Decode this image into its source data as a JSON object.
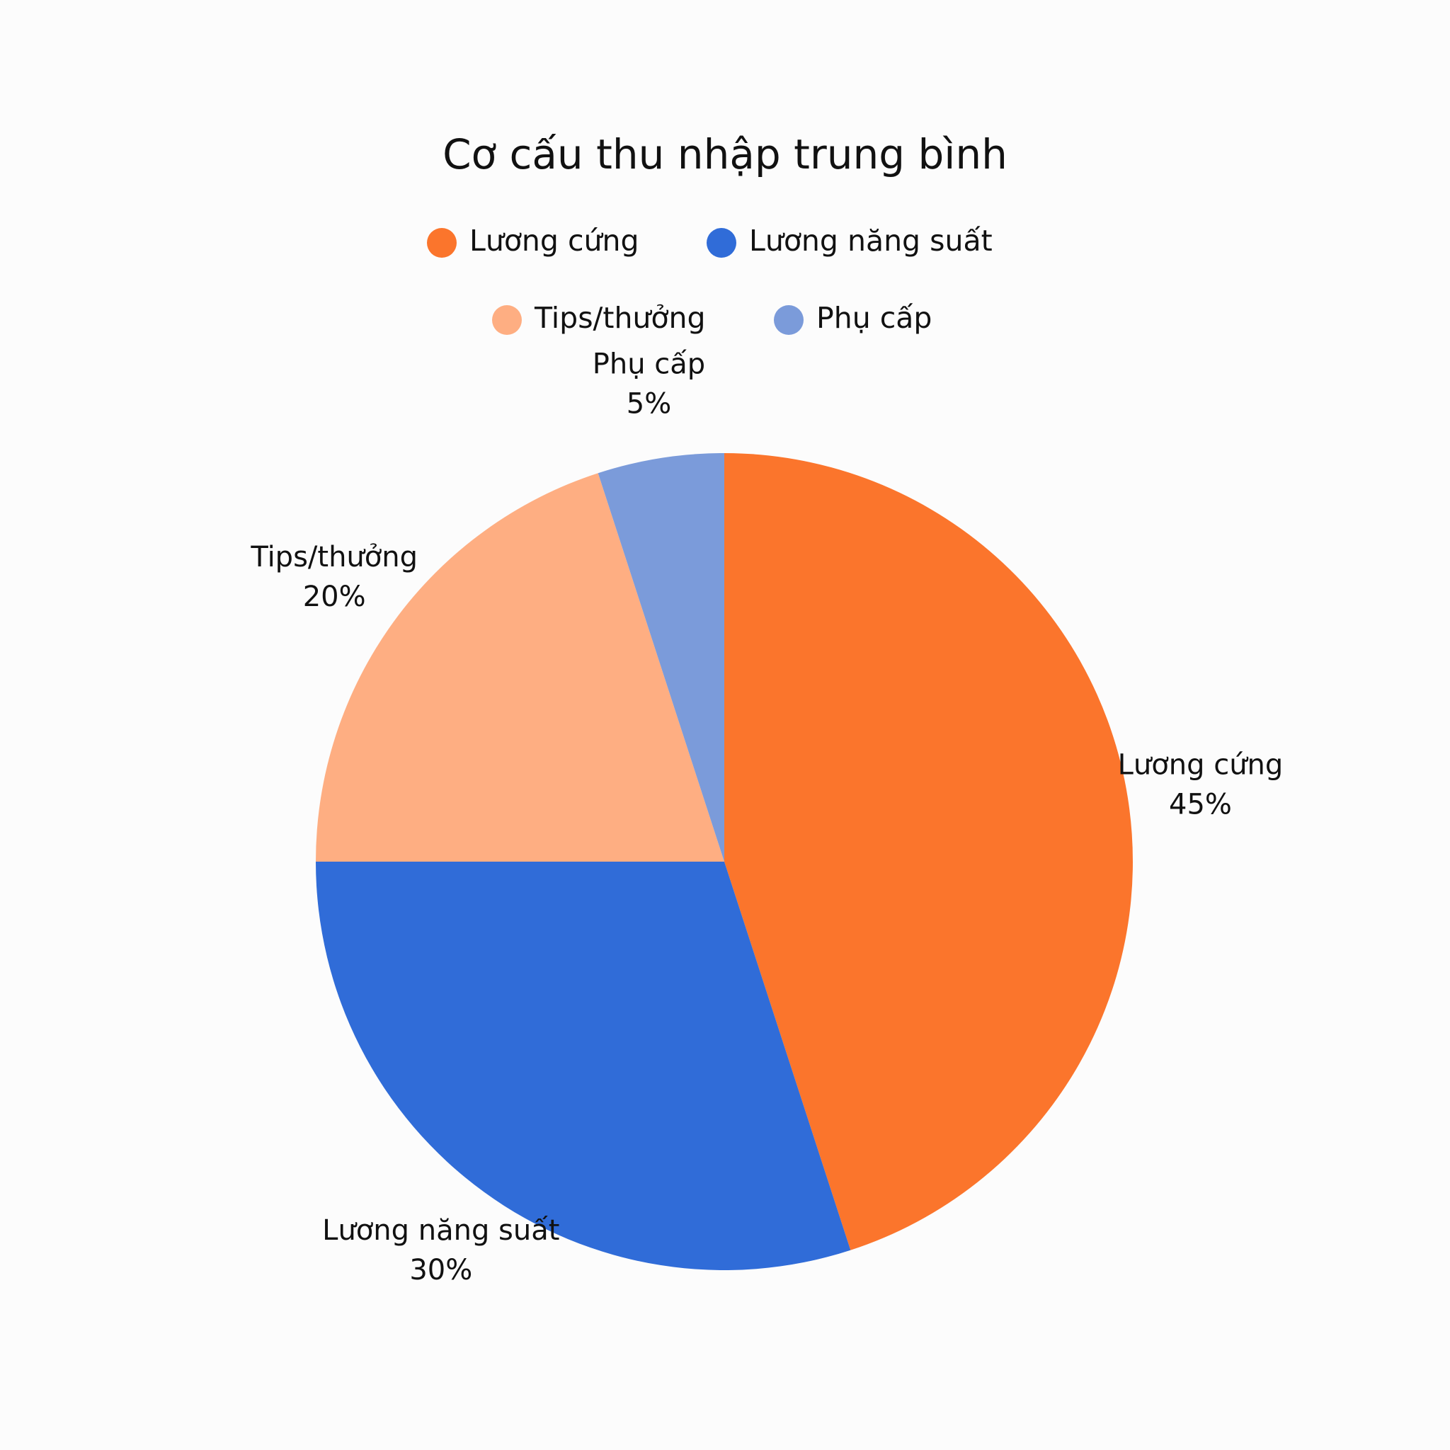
{
  "chart_data": {
    "type": "pie",
    "title": "Cơ cấu thu nhập trung bình",
    "categories": [
      "Lương cứng",
      "Lương năng suất",
      "Tips/thưởng",
      "Phụ cấp"
    ],
    "values": [
      45,
      30,
      20,
      5
    ],
    "value_labels": [
      "45%",
      "30%",
      "20%",
      "5%"
    ],
    "colors": [
      "#fb752c",
      "#306cd8",
      "#feae82",
      "#7b9bda"
    ]
  }
}
